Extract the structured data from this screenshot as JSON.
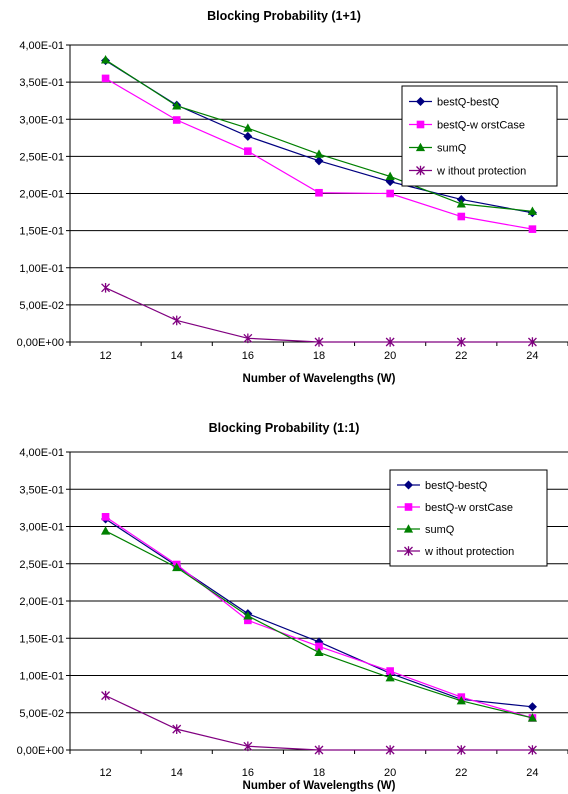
{
  "chart_data": [
    {
      "type": "line",
      "title": "Blocking Probability (1+1)",
      "xlabel": "Number of Wavelengths (W)",
      "ylabel": "",
      "x": [
        12,
        14,
        16,
        18,
        20,
        22,
        24
      ],
      "ylim": [
        0,
        0.4
      ],
      "yticks": [
        "0,00E+00",
        "5,00E-02",
        "1,00E-01",
        "1,50E-01",
        "2,00E-01",
        "2,50E-01",
        "3,00E-01",
        "3,50E-01",
        "4,00E-01"
      ],
      "xticks": [
        "12",
        "14",
        "16",
        "18",
        "20",
        "22",
        "24"
      ],
      "grid": "horizontal",
      "legend_position": "right",
      "series": [
        {
          "name": "bestQ-bestQ",
          "color": "#000080",
          "marker": "diamond",
          "values": [
            0.379,
            0.319,
            0.277,
            0.244,
            0.216,
            0.192,
            0.174
          ]
        },
        {
          "name": "bestQ-w orstCase",
          "color": "#ff00ff",
          "marker": "square",
          "values": [
            0.355,
            0.299,
            0.257,
            0.201,
            0.2,
            0.169,
            0.152
          ]
        },
        {
          "name": "sumQ",
          "color": "#008000",
          "marker": "triangle",
          "values": [
            0.38,
            0.318,
            0.288,
            0.253,
            0.223,
            0.186,
            0.176
          ]
        },
        {
          "name": "w ithout protection",
          "color": "#800080",
          "marker": "star",
          "values": [
            0.073,
            0.029,
            0.005,
            0.0,
            0.0,
            0.0,
            0.0
          ]
        }
      ]
    },
    {
      "type": "line",
      "title": "Blocking Probability (1:1)",
      "xlabel": "Number of Wavelengths (W)",
      "ylabel": "",
      "x": [
        12,
        14,
        16,
        18,
        20,
        22,
        24
      ],
      "ylim": [
        0,
        0.4
      ],
      "yticks": [
        "0,00E+00",
        "5,00E-02",
        "1,00E-01",
        "1,50E-01",
        "2,00E-01",
        "2,50E-01",
        "3,00E-01",
        "3,50E-01",
        "4,00E-01"
      ],
      "xticks": [
        "12",
        "14",
        "16",
        "18",
        "20",
        "22",
        "24"
      ],
      "grid": "horizontal",
      "legend_position": "top-right",
      "series": [
        {
          "name": "bestQ-bestQ",
          "color": "#000080",
          "marker": "diamond",
          "values": [
            0.31,
            0.247,
            0.183,
            0.145,
            0.103,
            0.068,
            0.058
          ]
        },
        {
          "name": "bestQ-w orstCase",
          "color": "#ff00ff",
          "marker": "square",
          "values": [
            0.313,
            0.249,
            0.174,
            0.139,
            0.106,
            0.071,
            0.043
          ]
        },
        {
          "name": "sumQ",
          "color": "#008000",
          "marker": "triangle",
          "values": [
            0.294,
            0.245,
            0.18,
            0.131,
            0.097,
            0.066,
            0.043
          ]
        },
        {
          "name": "w ithout protection",
          "color": "#800080",
          "marker": "star",
          "values": [
            0.073,
            0.028,
            0.005,
            0.0,
            0.0,
            0.0,
            0.0
          ]
        }
      ]
    }
  ]
}
